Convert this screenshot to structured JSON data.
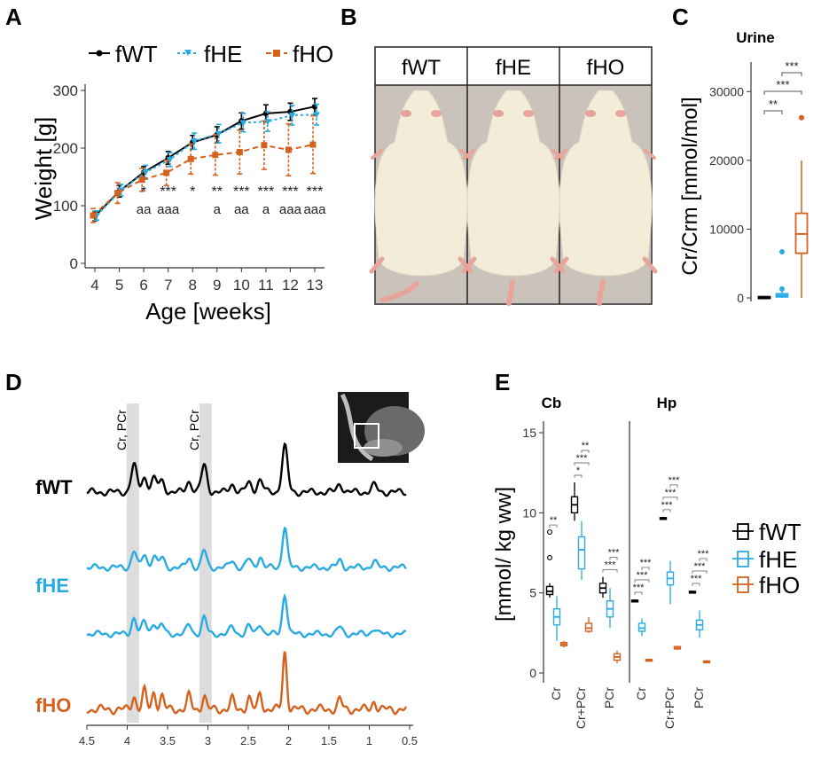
{
  "colors": {
    "fWT": "#000000",
    "fHE": "#29abe2",
    "fHO": "#d4621e",
    "photo_bg": "#c9c3bb",
    "rat": "#f2ecd9",
    "shade": "#d9d9d9"
  },
  "panels": {
    "A": "A",
    "B": "B",
    "C": "C",
    "D": "D",
    "E": "E"
  },
  "chart_data": [
    {
      "id": "A",
      "type": "line",
      "title": "",
      "xlabel": "Age [weeks]",
      "ylabel": "Weight [g]",
      "x": [
        4,
        5,
        6,
        7,
        8,
        9,
        10,
        11,
        12,
        13
      ],
      "xlim": [
        3.6,
        13.4
      ],
      "ylim": [
        0,
        300
      ],
      "yticks": [
        0,
        100,
        200,
        300
      ],
      "series": [
        {
          "name": "fWT",
          "values": [
            82,
            125,
            158,
            183,
            210,
            223,
            247,
            260,
            263,
            272
          ],
          "err": [
            8,
            10,
            10,
            11,
            12,
            14,
            14,
            15,
            15,
            14
          ]
        },
        {
          "name": "fHE",
          "values": [
            83,
            127,
            158,
            180,
            212,
            225,
            244,
            246,
            257,
            258
          ],
          "err": [
            8,
            10,
            12,
            12,
            14,
            16,
            16,
            17,
            17,
            18
          ]
        },
        {
          "name": "fHO",
          "values": [
            83,
            122,
            145,
            157,
            181,
            188,
            193,
            205,
            197,
            206
          ],
          "err": [
            12,
            18,
            20,
            22,
            26,
            35,
            38,
            42,
            45,
            50
          ]
        }
      ],
      "significance_top": [
        {
          "x": 6,
          "label": "*"
        },
        {
          "x": 7,
          "label": "***"
        },
        {
          "x": 8,
          "label": "*"
        },
        {
          "x": 9,
          "label": "**"
        },
        {
          "x": 10,
          "label": "***"
        },
        {
          "x": 11,
          "label": "***"
        },
        {
          "x": 12,
          "label": "***"
        },
        {
          "x": 13,
          "label": "***"
        }
      ],
      "significance_bottom": [
        {
          "x": 6,
          "label": "aa"
        },
        {
          "x": 7,
          "label": "aaa"
        },
        {
          "x": 9,
          "label": "a"
        },
        {
          "x": 10,
          "label": "aa"
        },
        {
          "x": 11,
          "label": "a"
        },
        {
          "x": 12,
          "label": "aaa"
        },
        {
          "x": 13,
          "label": "aaa"
        }
      ],
      "legend": [
        "fWT",
        "fHE",
        "fHO"
      ],
      "legend_position": "top"
    },
    {
      "id": "C",
      "type": "box",
      "title": "Urine",
      "ylabel": "Cr/Crm [mmol/mol]",
      "ylim": [
        0,
        33000
      ],
      "yticks": [
        0,
        10000,
        20000,
        30000
      ],
      "groups": [
        {
          "name": "fWT",
          "min": 0,
          "q1": 50,
          "median": 100,
          "q3": 180,
          "max": 300,
          "outliers": []
        },
        {
          "name": "fHE",
          "min": 0,
          "q1": 150,
          "median": 350,
          "q3": 600,
          "max": 1000,
          "outliers": [
            1300,
            6700
          ]
        },
        {
          "name": "fHO",
          "min": 0,
          "q1": 6500,
          "median": 9300,
          "q3": 12300,
          "max": 20000,
          "outliers": [
            26200
          ]
        }
      ],
      "brackets": [
        {
          "from": "fWT",
          "to": "fHE",
          "label": "**"
        },
        {
          "from": "fWT",
          "to": "fHO",
          "label": "***"
        },
        {
          "from": "fHE",
          "to": "fHO",
          "label": "***"
        }
      ]
    },
    {
      "id": "D",
      "type": "line",
      "title": "",
      "xlabel": "",
      "x_ticks": [
        "4.5",
        "4",
        "3.5",
        "3",
        "2.5",
        "2",
        "1.5",
        "1",
        "0.5"
      ],
      "xlim": [
        4.5,
        0.5
      ],
      "annotations": [
        "Cr, PCr",
        "Cr, PCr"
      ],
      "highlight_ppm": [
        3.93,
        3.03
      ],
      "series": [
        {
          "name": "fWT",
          "label": "fWT"
        },
        {
          "name": "fHE",
          "label": "fHE"
        },
        {
          "name": "fHE2",
          "label": ""
        },
        {
          "name": "fHO",
          "label": "fHO"
        }
      ],
      "peaks_ppm": [
        [
          3.91,
          1.0
        ],
        [
          3.78,
          0.55
        ],
        [
          3.66,
          0.5
        ],
        [
          3.56,
          0.4
        ],
        [
          3.22,
          0.4
        ],
        [
          3.03,
          1.0
        ],
        [
          2.68,
          0.3
        ],
        [
          2.47,
          0.35
        ],
        [
          2.33,
          0.45
        ],
        [
          2.02,
          1.7
        ],
        [
          1.33,
          0.3
        ],
        [
          0.9,
          0.25
        ]
      ]
    },
    {
      "id": "E",
      "type": "box",
      "ylabel": "[mmol/ kg ww]",
      "ylim": [
        0,
        15
      ],
      "yticks": [
        0,
        5,
        10,
        15
      ],
      "facets": [
        {
          "name": "Cb",
          "categories": [
            "Cr",
            "Cr+PCr",
            "PCr"
          ],
          "groups": {
            "Cr": [
              {
                "name": "fWT",
                "q1": 4.9,
                "median": 5.1,
                "q3": 5.4,
                "min": 4.7,
                "max": 5.6,
                "outliers": [
                  7.2,
                  8.8
                ]
              },
              {
                "name": "fHE",
                "q1": 3.0,
                "median": 3.5,
                "q3": 4.0,
                "min": 2.0,
                "max": 4.8,
                "outliers": []
              },
              {
                "name": "fHO",
                "q1": 1.7,
                "median": 1.8,
                "q3": 1.9,
                "min": 1.6,
                "max": 2.0,
                "outliers": []
              }
            ],
            "Cr+PCr": [
              {
                "name": "fWT",
                "q1": 10.0,
                "median": 10.5,
                "q3": 11.0,
                "min": 9.5,
                "max": 11.9,
                "outliers": []
              },
              {
                "name": "fHE",
                "q1": 6.5,
                "median": 7.7,
                "q3": 8.5,
                "min": 5.8,
                "max": 9.5,
                "outliers": []
              },
              {
                "name": "fHO",
                "q1": 2.6,
                "median": 2.8,
                "q3": 3.1,
                "min": 2.5,
                "max": 3.5,
                "outliers": []
              }
            ],
            "PCr": [
              {
                "name": "fWT",
                "q1": 5.0,
                "median": 5.3,
                "q3": 5.6,
                "min": 4.7,
                "max": 6.0,
                "outliers": []
              },
              {
                "name": "fHE",
                "q1": 3.5,
                "median": 4.0,
                "q3": 4.5,
                "min": 2.8,
                "max": 5.3,
                "outliers": []
              },
              {
                "name": "fHO",
                "q1": 0.8,
                "median": 1.0,
                "q3": 1.2,
                "min": 0.6,
                "max": 1.4,
                "outliers": []
              }
            ]
          },
          "brackets": [
            {
              "category": "Cr",
              "pair": "fWT-fHE",
              "label": "**"
            },
            {
              "category": "Cr+PCr",
              "pair": "fWT-fHE",
              "label": "*"
            },
            {
              "category": "Cr+PCr",
              "pair": "fWT-fHO",
              "label": "***"
            },
            {
              "category": "Cr+PCr",
              "pair": "fHE-fHO",
              "label": "**"
            },
            {
              "category": "PCr",
              "pair": "fWT-fHO",
              "label": "***"
            },
            {
              "category": "PCr",
              "pair": "fHE-fHO",
              "label": "***"
            }
          ]
        },
        {
          "name": "Hp",
          "categories": [
            "Cr",
            "Cr+PCr",
            "PCr"
          ],
          "groups": {
            "Cr": [
              {
                "name": "fWT",
                "q1": 4.45,
                "median": 4.5,
                "q3": 4.55,
                "min": 4.4,
                "max": 4.6,
                "outliers": []
              },
              {
                "name": "fHE",
                "q1": 2.6,
                "median": 2.8,
                "q3": 3.1,
                "min": 2.3,
                "max": 3.4,
                "outliers": []
              },
              {
                "name": "fHO",
                "q1": 0.75,
                "median": 0.8,
                "q3": 0.85,
                "min": 0.7,
                "max": 0.9,
                "outliers": []
              }
            ],
            "Cr+PCr": [
              {
                "name": "fWT",
                "q1": 9.6,
                "median": 9.65,
                "q3": 9.7,
                "min": 9.55,
                "max": 9.75,
                "outliers": []
              },
              {
                "name": "fHE",
                "q1": 5.5,
                "median": 5.9,
                "q3": 6.3,
                "min": 4.3,
                "max": 7.0,
                "outliers": []
              },
              {
                "name": "fHO",
                "q1": 1.5,
                "median": 1.55,
                "q3": 1.65,
                "min": 1.45,
                "max": 1.7,
                "outliers": []
              }
            ],
            "PCr": [
              {
                "name": "fWT",
                "q1": 5.0,
                "median": 5.05,
                "q3": 5.1,
                "min": 4.95,
                "max": 5.15,
                "outliers": []
              },
              {
                "name": "fHE",
                "q1": 2.7,
                "median": 3.0,
                "q3": 3.3,
                "min": 2.2,
                "max": 3.9,
                "outliers": []
              },
              {
                "name": "fHO",
                "q1": 0.65,
                "median": 0.7,
                "q3": 0.75,
                "min": 0.6,
                "max": 0.8,
                "outliers": []
              }
            ]
          },
          "brackets": [
            {
              "category": "Cr",
              "pair": "fWT-fHE",
              "label": "***"
            },
            {
              "category": "Cr",
              "pair": "fWT-fHO",
              "label": "***"
            },
            {
              "category": "Cr",
              "pair": "fHE-fHO",
              "label": "***"
            },
            {
              "category": "Cr+PCr",
              "pair": "fWT-fHE",
              "label": "***"
            },
            {
              "category": "Cr+PCr",
              "pair": "fWT-fHO",
              "label": "***"
            },
            {
              "category": "Cr+PCr",
              "pair": "fHE-fHO",
              "label": "***"
            },
            {
              "category": "PCr",
              "pair": "fWT-fHE",
              "label": "***"
            },
            {
              "category": "PCr",
              "pair": "fWT-fHO",
              "label": "***"
            },
            {
              "category": "PCr",
              "pair": "fHE-fHO",
              "label": "***"
            }
          ]
        }
      ],
      "legend": [
        "fWT",
        "fHE",
        "fHO"
      ],
      "legend_position": "right"
    }
  ],
  "photo_labels": [
    "fWT",
    "fHE",
    "fHO"
  ]
}
